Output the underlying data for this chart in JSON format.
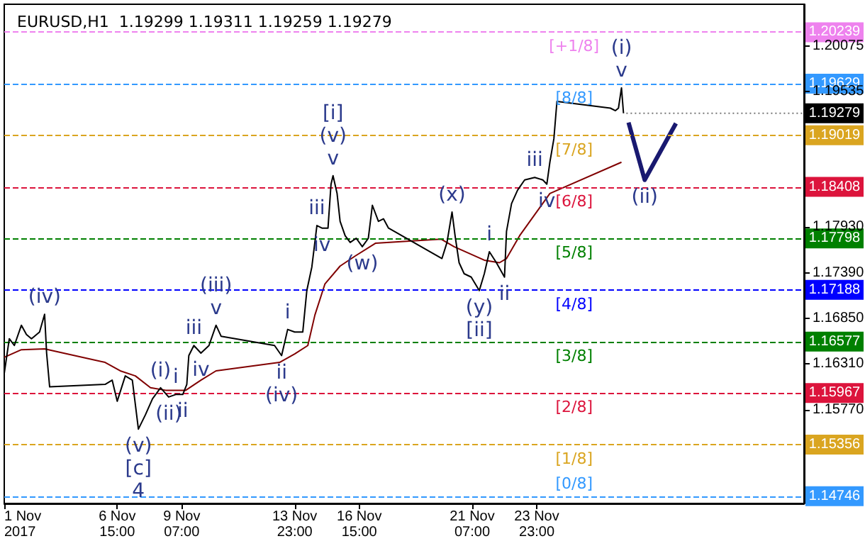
{
  "chart_data": {
    "type": "line",
    "title": "EURUSD,H1  1.19299 1.19311 1.19259 1.19279",
    "xlim": [
      "2017-11-01T23:00",
      "2017-12-05T00:00"
    ],
    "ylim": [
      1.1466,
      1.2057
    ],
    "xticks": [
      {
        "value": "2017-11-01T23:00",
        "label": "1 Nov 2017"
      },
      {
        "value": "2017-11-06T15:00",
        "label": "6 Nov 15:00"
      },
      {
        "value": "2017-11-09T07:00",
        "label": "9 Nov 07:00"
      },
      {
        "value": "2017-11-13T23:00",
        "label": "13 Nov 23:00"
      },
      {
        "value": "2017-11-16T15:00",
        "label": "16 Nov 15:00"
      },
      {
        "value": "2017-11-21T07:00",
        "label": "21 Nov 07:00"
      },
      {
        "value": "2017-11-23T23:00",
        "label": "23 Nov 23:00"
      }
    ],
    "yticks": [
      {
        "value": 1.1577,
        "label": "1.15770"
      },
      {
        "value": 1.1631,
        "label": "1.16310"
      },
      {
        "value": 1.1685,
        "label": "1.16850"
      },
      {
        "value": 1.1739,
        "label": "1.17390"
      },
      {
        "value": 1.1793,
        "label": "1.17930"
      },
      1.19535,
      1.20075
    ],
    "series": [
      {
        "color": "#000000",
        "x": [
          "2017-11-01T23:00",
          "2017-11-02T04:00",
          "2017-11-02T09:00",
          "2017-11-02T16:00",
          "2017-11-02T21:00",
          "2017-11-03T02:00",
          "2017-11-03T10:00",
          "2017-11-03T15:00",
          "2017-11-03T17:00",
          "2017-11-03T20:00",
          "2017-11-06T03:00",
          "2017-11-06T10:00",
          "2017-11-06T15:00",
          "2017-11-06T23:00",
          "2017-11-07T06:00",
          "2017-11-07T12:00",
          "2017-11-07T19:00",
          "2017-11-08T02:00",
          "2017-11-08T10:00",
          "2017-11-08T18:00",
          "2017-11-09T01:00",
          "2017-11-09T08:00",
          "2017-11-09T12:00",
          "2017-11-09T14:00",
          "2017-11-09T19:00",
          "2017-11-10T02:00",
          "2017-11-10T10:00",
          "2017-11-10T17:00",
          "2017-11-10T22:00",
          "2017-11-13T03:00",
          "2017-11-13T10:00",
          "2017-11-13T16:00",
          "2017-11-13T23:00",
          "2017-11-14T07:00",
          "2017-11-14T11:00",
          "2017-11-14T16:00",
          "2017-11-14T21:00",
          "2017-11-15T02:00",
          "2017-11-15T08:00",
          "2017-11-15T11:00",
          "2017-11-15T13:00",
          "2017-11-15T17:00",
          "2017-11-15T20:00",
          "2017-11-16T01:00",
          "2017-11-16T06:00",
          "2017-11-16T12:00",
          "2017-11-16T18:00",
          "2017-11-17T00:00",
          "2017-11-17T04:00",
          "2017-11-17T10:00",
          "2017-11-17T15:00",
          "2017-11-17T20:00",
          "2017-11-20T01:00",
          "2017-11-20T06:00",
          "2017-11-20T11:00",
          "2017-11-20T14:00",
          "2017-11-20T18:00",
          "2017-11-20T23:00",
          "2017-11-21T06:00",
          "2017-11-21T14:00",
          "2017-11-21T19:00",
          "2017-11-22T00:00",
          "2017-11-22T07:00",
          "2017-11-22T15:00",
          "2017-11-22T17:00",
          "2017-11-22T22:00",
          "2017-11-23T04:00",
          "2017-11-23T11:00",
          "2017-11-23T21:00",
          "2017-11-24T05:00",
          "2017-11-24T09:00",
          "2017-11-24T12:00",
          "2017-11-24T16:00",
          "2017-11-24T19:00",
          "2017-11-27T00:00",
          "2017-11-27T05:00",
          "2017-11-27T08:00",
          "2017-11-27T11:00",
          "2017-11-27T13:00"
        ],
        "values": [
          1.162,
          1.1661,
          1.1653,
          1.1677,
          1.1666,
          1.1661,
          1.1669,
          1.169,
          1.1644,
          1.1604,
          1.1607,
          1.1612,
          1.1587,
          1.1617,
          1.1612,
          1.1554,
          1.1571,
          1.159,
          1.1603,
          1.1592,
          1.1595,
          1.1595,
          1.1607,
          1.1641,
          1.1653,
          1.1644,
          1.1653,
          1.1677,
          1.1664,
          1.1653,
          1.1641,
          1.1672,
          1.1669,
          1.1669,
          1.1718,
          1.1746,
          1.1795,
          1.1792,
          1.1792,
          1.1844,
          1.1854,
          1.1833,
          1.18,
          1.1783,
          1.1775,
          1.178,
          1.177,
          1.178,
          1.1819,
          1.18,
          1.1803,
          1.1792,
          1.1756,
          1.1775,
          1.1811,
          1.1783,
          1.1751,
          1.1738,
          1.1734,
          1.1718,
          1.1738,
          1.1764,
          1.1751,
          1.1734,
          1.1788,
          1.1821,
          1.1837,
          1.1849,
          1.1852,
          1.1849,
          1.1844,
          1.187,
          1.1898,
          1.1942,
          1.1934,
          1.1931,
          1.1934,
          1.1958,
          1.19279
        ]
      },
      {
        "color": "#800000",
        "x": [
          "2017-11-01T23:00",
          "2017-11-02T16:00",
          "2017-11-03T15:00",
          "2017-11-06T03:00",
          "2017-11-06T18:00",
          "2017-11-07T09:00",
          "2017-11-08T00:00",
          "2017-11-08T15:00",
          "2017-11-09T11:00",
          "2017-11-10T02:00",
          "2017-11-10T17:00",
          "2017-11-13T08:00",
          "2017-11-13T23:00",
          "2017-11-14T12:00",
          "2017-11-14T19:00",
          "2017-11-15T05:00",
          "2017-11-15T20:00",
          "2017-11-16T11:00",
          "2017-11-17T07:00",
          "2017-11-20T00:00",
          "2017-11-20T13:00",
          "2017-11-21T04:00",
          "2017-11-21T19:00",
          "2017-11-22T10:00",
          "2017-11-22T17:00",
          "2017-11-23T06:00",
          "2017-11-23T21:00",
          "2017-11-24T12:00",
          "2017-11-27T11:00"
        ],
        "values": [
          1.1639,
          1.1648,
          1.1649,
          1.1633,
          1.1623,
          1.1617,
          1.1603,
          1.16,
          1.16,
          1.1612,
          1.1623,
          1.1633,
          1.1643,
          1.1653,
          1.1689,
          1.1726,
          1.1747,
          1.1759,
          1.1774,
          1.1779,
          1.177,
          1.1762,
          1.1754,
          1.1751,
          1.1756,
          1.1783,
          1.1808,
          1.1833,
          1.187
        ]
      },
      {
        "color": "#191970",
        "x": [
          "2017-11-27T18:00",
          "2017-11-28T10:00",
          "2017-11-29T17:00"
        ],
        "values": [
          1.1917,
          1.1849,
          1.1916
        ]
      }
    ],
    "ref_lines": [
      {
        "axis": "y",
        "value": 1.20239,
        "label": "1.20239",
        "color": "#ee82ee",
        "line_style": "dashed"
      },
      {
        "axis": "y",
        "value": 1.19629,
        "label": "1.19629",
        "color": "#3399ff",
        "line_style": "dashed"
      },
      {
        "axis": "y",
        "value": 1.19019,
        "label": "1.19019",
        "color": "#daa520",
        "line_style": "dashed"
      },
      {
        "axis": "y",
        "value": 1.18408,
        "label": "1.18408",
        "color": "#dc143c",
        "line_style": "dashed"
      },
      {
        "axis": "y",
        "value": 1.17798,
        "label": "1.17798",
        "color": "#008000",
        "line_style": "dashed"
      },
      {
        "axis": "y",
        "value": 1.17188,
        "label": "1.17188",
        "color": "#0000ff",
        "line_style": "dashed"
      },
      {
        "axis": "y",
        "value": 1.16577,
        "label": "1.16577",
        "color": "#008000",
        "line_style": "dashed"
      },
      {
        "axis": "y",
        "value": 1.15967,
        "label": "1.15967",
        "color": "#dc143c",
        "line_style": "dashed"
      },
      {
        "axis": "y",
        "value": 1.15356,
        "label": "1.15356",
        "color": "#daa520",
        "line_style": "dashed"
      },
      {
        "axis": "y",
        "value": 1.14746,
        "label": "1.14746",
        "color": "#3399ff",
        "line_style": "dashed"
      }
    ],
    "annotations": [
      {
        "text": "1.19279",
        "x": "2017-11-27T13:00",
        "y": 1.19279
      },
      {
        "text": "[+1/8]",
        "x": "2017-11-25T12:00",
        "y": 1.20239
      },
      {
        "text": "[8/8]",
        "x": "2017-11-25T12:00",
        "y": 1.19629
      },
      {
        "text": "[7/8]",
        "x": "2017-11-25T12:00",
        "y": 1.19019
      },
      {
        "text": "[6/8]",
        "x": "2017-11-25T12:00",
        "y": 1.18408
      },
      {
        "text": "[5/8]",
        "x": "2017-11-25T12:00",
        "y": 1.17798
      },
      {
        "text": "[4/8]",
        "x": "2017-11-25T12:00",
        "y": 1.17188
      },
      {
        "text": "[3/8]",
        "x": "2017-11-25T12:00",
        "y": 1.16577
      },
      {
        "text": "[2/8]",
        "x": "2017-11-25T12:00",
        "y": 1.15967
      },
      {
        "text": "[1/8]",
        "x": "2017-11-25T12:00",
        "y": 1.15356
      },
      {
        "text": "[0/8]",
        "x": "2017-11-25T12:00",
        "y": 1.14746
      },
      {
        "text": "(iv)",
        "x": "2017-11-03T15:00",
        "y": 1.169
      },
      {
        "text": "(i)",
        "x": "2017-11-08T10:00",
        "y": 1.1603
      },
      {
        "text": "i",
        "x": "2017-11-09T01:00",
        "y": 1.1595
      },
      {
        "text": "(ii)",
        "x": "2017-11-08T18:00",
        "y": 1.1592
      },
      {
        "text": "ii",
        "x": "2017-11-09T08:00",
        "y": 1.1595
      },
      {
        "text": "(v)",
        "x": "2017-11-07T12:00",
        "y": 1.1554
      },
      {
        "text": "[c]",
        "x": "2017-11-07T12:00",
        "y": 1.1554
      },
      {
        "text": "4",
        "x": "2017-11-07T12:00",
        "y": 1.1554
      },
      {
        "text": "iii",
        "x": "2017-11-09T19:00",
        "y": 1.1653
      },
      {
        "text": "v",
        "x": "2017-11-10T17:00",
        "y": 1.1677
      },
      {
        "text": "(iii)",
        "x": "2017-11-10T17:00",
        "y": 1.1677
      },
      {
        "text": "iv",
        "x": "2017-11-10T02:00",
        "y": 1.1644
      },
      {
        "text": "i",
        "x": "2017-11-13T16:00",
        "y": 1.1672
      },
      {
        "text": "ii",
        "x": "2017-11-13T10:00",
        "y": 1.1641
      },
      {
        "text": "(iv)",
        "x": "2017-11-13T10:00",
        "y": 1.1641
      },
      {
        "text": "v",
        "x": "2017-11-15T13:00",
        "y": 1.1854
      },
      {
        "text": "(v)",
        "x": "2017-11-15T13:00",
        "y": 1.1854
      },
      {
        "text": "[i]",
        "x": "2017-11-15T13:00",
        "y": 1.1854
      },
      {
        "text": "iii",
        "x": "2017-11-14T21:00",
        "y": 1.1795
      },
      {
        "text": "iv",
        "x": "2017-11-15T02:00",
        "y": 1.1792
      },
      {
        "text": "(w)",
        "x": "2017-11-16T18:00",
        "y": 1.177
      },
      {
        "text": "(x)",
        "x": "2017-11-20T11:00",
        "y": 1.1811
      },
      {
        "text": "(y)",
        "x": "2017-11-21T14:00",
        "y": 1.1718
      },
      {
        "text": "[ii]",
        "x": "2017-11-21T14:00",
        "y": 1.1718
      },
      {
        "text": "i",
        "x": "2017-11-22T00:00",
        "y": 1.1764
      },
      {
        "text": "ii",
        "x": "2017-11-22T15:00",
        "y": 1.1734
      },
      {
        "text": "iii",
        "x": "2017-11-23T21:00",
        "y": 1.1852
      },
      {
        "text": "iv",
        "x": "2017-11-24T09:00",
        "y": 1.1844
      },
      {
        "text": "v",
        "x": "2017-11-27T11:00",
        "y": 1.1958
      },
      {
        "text": "(i)",
        "x": "2017-11-27T11:00",
        "y": 1.1958
      },
      {
        "text": "(ii)",
        "x": "2017-11-28T10:00",
        "y": 1.1849
      }
    ]
  }
}
